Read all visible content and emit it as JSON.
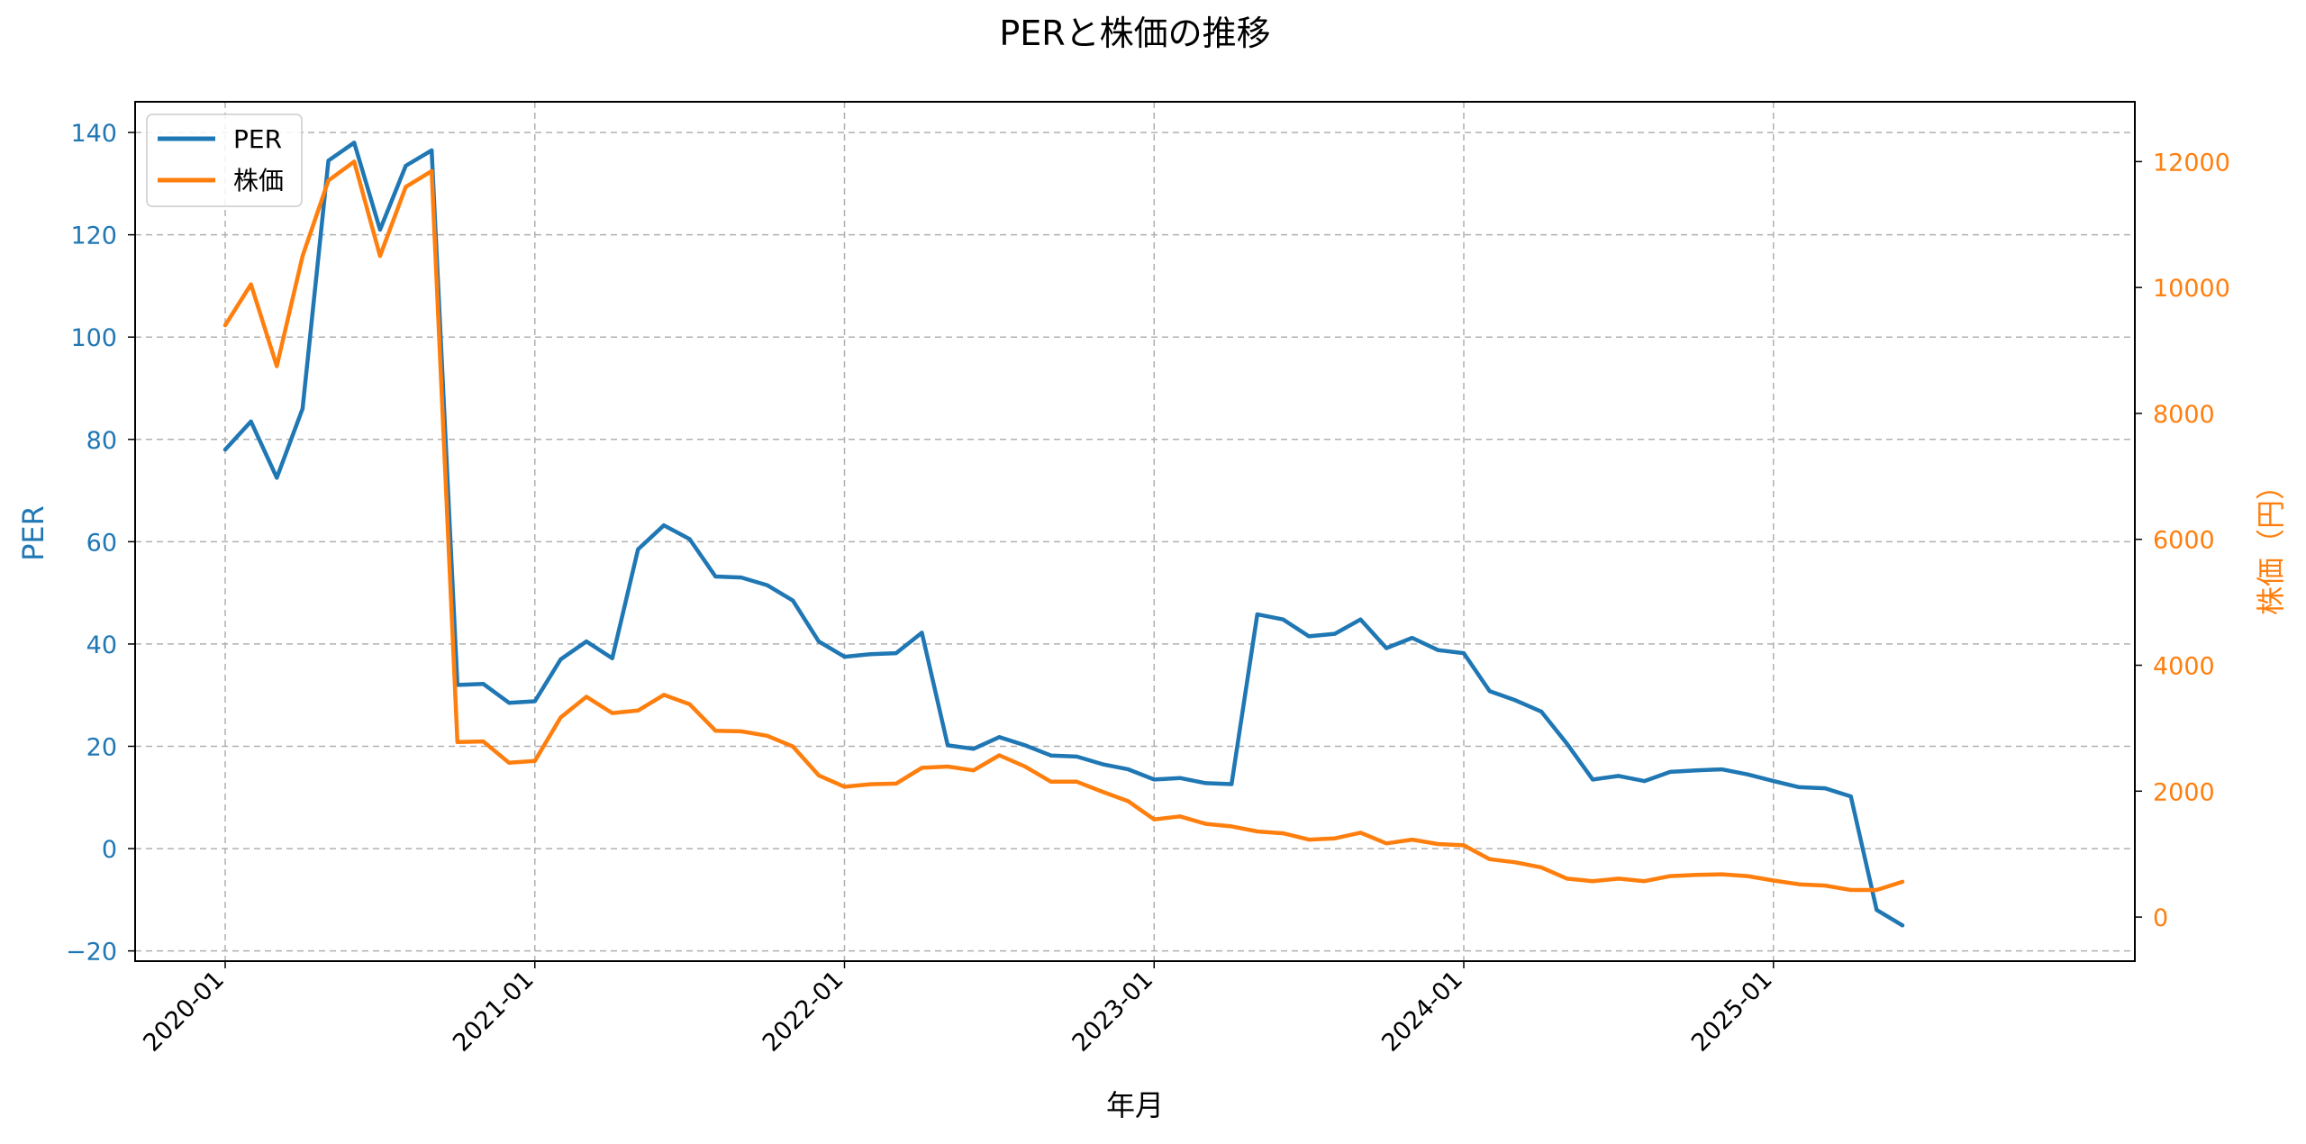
{
  "chart_data": {
    "type": "line",
    "title": "PERと株価の推移",
    "xlabel": "年月",
    "ylabel_left": "PER",
    "ylabel_right": "株価（円）",
    "left_ylim": [
      -22,
      146
    ],
    "right_ylim": [
      -700,
      12950
    ],
    "left_ticks": [
      -20,
      0,
      20,
      40,
      60,
      80,
      100,
      120,
      140
    ],
    "right_ticks": [
      0,
      2000,
      4000,
      6000,
      8000,
      10000,
      12000
    ],
    "x_tick_labels": [
      "2020-01",
      "2021-01",
      "2022-01",
      "2023-01",
      "2024-01",
      "2025-01"
    ],
    "x_start": "2020-01",
    "x_end": "2025-06",
    "grid": true,
    "legend_position": "top-left",
    "colors": {
      "per": "#1f77b4",
      "price": "#ff7f0e"
    },
    "series": [
      {
        "name": "PER",
        "axis": "left",
        "values": [
          78,
          83.5,
          72.5,
          86,
          134.5,
          138,
          121,
          133.5,
          136.5,
          32,
          32.2,
          28.5,
          28.8,
          37,
          40.5,
          37.2,
          58.5,
          63.2,
          60.5,
          53.2,
          53,
          51.5,
          48.5,
          40.5,
          37.5,
          38,
          38.2,
          42.2,
          20.2,
          19.5,
          21.8,
          20.2,
          18.2,
          18,
          16.5,
          15.5,
          13.5,
          13.8,
          12.8,
          12.6,
          45.8,
          44.8,
          41.5,
          42,
          44.8,
          39.2,
          41.2,
          38.8,
          38.2,
          30.8,
          29,
          26.8,
          20.5,
          13.5,
          14.2,
          13.2,
          15,
          15.3,
          15.5,
          14.5,
          13.2,
          12,
          11.8,
          10.2,
          -12,
          -15
        ]
      },
      {
        "name": "株価",
        "axis": "right",
        "values": [
          9400,
          10050,
          8750,
          10500,
          11700,
          12000,
          10500,
          11600,
          11850,
          2780,
          2790,
          2450,
          2480,
          3170,
          3500,
          3240,
          3280,
          3530,
          3380,
          2960,
          2950,
          2880,
          2710,
          2250,
          2070,
          2110,
          2120,
          2370,
          2390,
          2330,
          2570,
          2390,
          2150,
          2150,
          1990,
          1840,
          1550,
          1600,
          1480,
          1440,
          1360,
          1330,
          1230,
          1250,
          1340,
          1170,
          1230,
          1160,
          1140,
          920,
          870,
          790,
          610,
          570,
          610,
          570,
          650,
          670,
          680,
          650,
          580,
          520,
          500,
          430,
          430,
          560
        ]
      }
    ]
  }
}
